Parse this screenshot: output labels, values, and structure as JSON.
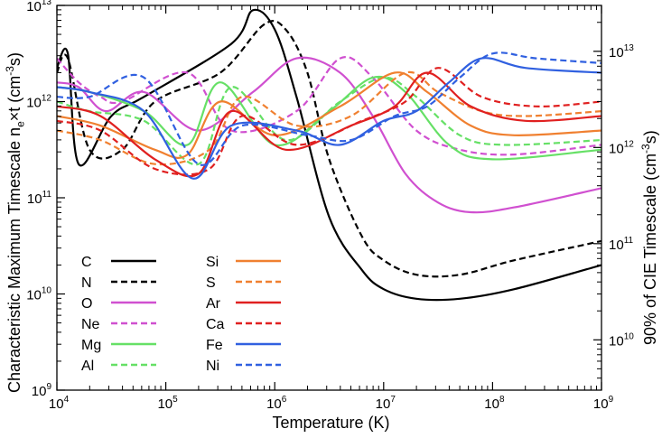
{
  "chart_data": {
    "type": "line",
    "xlabel": "Temperature (K)",
    "ylabel_left": "Characteristic Maximum Timescale nₑ×t (cm⁻³s)",
    "ylabel_left_parts": [
      "Characteristic Maximum Timescale n",
      "e",
      "×t (cm",
      "-3",
      "s)"
    ],
    "ylabel_right": "90% of CIE Timescale (cm⁻³s)",
    "ylabel_right_parts": [
      "90% of CIE Timescale (cm",
      "-3",
      "s)"
    ],
    "xscale": "log",
    "yscale": "log",
    "xlim": [
      10000,
      1000000000
    ],
    "ylim_left": [
      1000000000,
      10000000000000
    ],
    "ylim_right": [
      3000000000,
      30000000000000
    ],
    "x_ticks": [
      {
        "label": "10",
        "exp": "4"
      },
      {
        "label": "10",
        "exp": "5"
      },
      {
        "label": "10",
        "exp": "6"
      },
      {
        "label": "10",
        "exp": "7"
      },
      {
        "label": "10",
        "exp": "8"
      },
      {
        "label": "10",
        "exp": "9"
      }
    ],
    "y_ticks_left": [
      {
        "label": "10",
        "exp": "9"
      },
      {
        "label": "10",
        "exp": "10"
      },
      {
        "label": "10",
        "exp": "11"
      },
      {
        "label": "10",
        "exp": "12"
      },
      {
        "label": "10",
        "exp": "13"
      }
    ],
    "y_ticks_right": [
      {
        "label": "10",
        "exp": "10"
      },
      {
        "label": "10",
        "exp": "11"
      },
      {
        "label": "10",
        "exp": "12"
      },
      {
        "label": "10",
        "exp": "13"
      }
    ],
    "legend_placement": "bottom-left",
    "series": [
      {
        "name": "C",
        "color": "#000000",
        "dash": false,
        "points": [
          [
            4.0,
            12.35
          ],
          [
            4.1,
            12.5
          ],
          [
            4.2,
            11.35
          ],
          [
            4.5,
            11.85
          ],
          [
            4.8,
            12.05
          ],
          [
            5.6,
            12.6
          ],
          [
            5.8,
            12.95
          ],
          [
            6.0,
            12.75
          ],
          [
            6.2,
            12.05
          ],
          [
            6.5,
            10.8
          ],
          [
            6.8,
            10.25
          ],
          [
            7.0,
            10.05
          ],
          [
            7.3,
            9.95
          ],
          [
            7.7,
            9.95
          ],
          [
            8.2,
            10.05
          ],
          [
            9.0,
            10.3
          ]
        ]
      },
      {
        "name": "N",
        "color": "#000000",
        "dash": true,
        "points": [
          [
            4.0,
            12.3
          ],
          [
            4.1,
            12.45
          ],
          [
            4.3,
            11.5
          ],
          [
            4.6,
            11.5
          ],
          [
            4.9,
            12.0
          ],
          [
            5.5,
            12.3
          ],
          [
            5.9,
            12.8
          ],
          [
            6.1,
            12.75
          ],
          [
            6.3,
            12.3
          ],
          [
            6.5,
            11.4
          ],
          [
            6.8,
            10.6
          ],
          [
            7.0,
            10.35
          ],
          [
            7.3,
            10.2
          ],
          [
            7.7,
            10.2
          ],
          [
            8.2,
            10.35
          ],
          [
            9.0,
            10.55
          ]
        ]
      },
      {
        "name": "O",
        "color": "#d050d0",
        "dash": false,
        "points": [
          [
            4.0,
            12.2
          ],
          [
            4.2,
            12.15
          ],
          [
            4.45,
            11.9
          ],
          [
            4.8,
            12.1
          ],
          [
            5.3,
            11.7
          ],
          [
            5.8,
            12.1
          ],
          [
            6.2,
            12.45
          ],
          [
            6.6,
            12.3
          ],
          [
            6.9,
            11.85
          ],
          [
            7.2,
            11.25
          ],
          [
            7.5,
            10.95
          ],
          [
            7.8,
            10.85
          ],
          [
            8.2,
            10.9
          ],
          [
            9.0,
            11.1
          ]
        ]
      },
      {
        "name": "Ne",
        "color": "#d050d0",
        "dash": true,
        "points": [
          [
            4.0,
            12.45
          ],
          [
            4.2,
            12.2
          ],
          [
            4.4,
            12.05
          ],
          [
            4.6,
            12.0
          ],
          [
            5.2,
            12.3
          ],
          [
            5.6,
            11.7
          ],
          [
            6.2,
            11.9
          ],
          [
            6.6,
            12.45
          ],
          [
            6.9,
            12.25
          ],
          [
            7.3,
            11.7
          ],
          [
            7.7,
            11.5
          ],
          [
            8.2,
            11.45
          ],
          [
            9.0,
            11.55
          ]
        ]
      },
      {
        "name": "Mg",
        "color": "#66e066",
        "dash": false,
        "points": [
          [
            4.0,
            12.15
          ],
          [
            4.3,
            12.1
          ],
          [
            4.8,
            11.9
          ],
          [
            5.2,
            11.55
          ],
          [
            5.5,
            12.2
          ],
          [
            6.0,
            11.55
          ],
          [
            6.5,
            11.9
          ],
          [
            6.9,
            12.25
          ],
          [
            7.2,
            12.1
          ],
          [
            7.6,
            11.55
          ],
          [
            8.0,
            11.4
          ],
          [
            9.0,
            11.5
          ]
        ]
      },
      {
        "name": "Al",
        "color": "#66e066",
        "dash": true,
        "points": [
          [
            4.0,
            12.0
          ],
          [
            4.3,
            11.9
          ],
          [
            4.8,
            11.8
          ],
          [
            5.3,
            11.35
          ],
          [
            5.6,
            12.15
          ],
          [
            6.1,
            11.6
          ],
          [
            6.6,
            12.0
          ],
          [
            7.0,
            12.25
          ],
          [
            7.3,
            12.05
          ],
          [
            7.7,
            11.65
          ],
          [
            8.1,
            11.55
          ],
          [
            9.0,
            11.6
          ]
        ]
      },
      {
        "name": "Si",
        "color": "#f08030",
        "dash": false,
        "points": [
          [
            4.0,
            11.85
          ],
          [
            4.4,
            11.75
          ],
          [
            4.9,
            11.5
          ],
          [
            5.2,
            11.45
          ],
          [
            5.5,
            12.0
          ],
          [
            6.0,
            11.65
          ],
          [
            6.6,
            11.95
          ],
          [
            7.1,
            12.3
          ],
          [
            7.4,
            12.1
          ],
          [
            7.8,
            11.75
          ],
          [
            8.2,
            11.65
          ],
          [
            9.0,
            11.7
          ]
        ]
      },
      {
        "name": "S",
        "color": "#f08030",
        "dash": true,
        "points": [
          [
            4.0,
            11.7
          ],
          [
            4.4,
            11.6
          ],
          [
            4.9,
            11.35
          ],
          [
            5.4,
            11.5
          ],
          [
            5.7,
            12.05
          ],
          [
            6.2,
            11.75
          ],
          [
            6.7,
            11.85
          ],
          [
            7.2,
            12.3
          ],
          [
            7.5,
            12.1
          ],
          [
            7.9,
            11.9
          ],
          [
            8.3,
            11.85
          ],
          [
            9.0,
            11.9
          ]
        ]
      },
      {
        "name": "Ar",
        "color": "#e02020",
        "dash": false,
        "points": [
          [
            4.0,
            11.95
          ],
          [
            4.4,
            11.85
          ],
          [
            4.9,
            11.4
          ],
          [
            5.3,
            11.25
          ],
          [
            5.6,
            11.9
          ],
          [
            6.1,
            11.5
          ],
          [
            6.7,
            11.75
          ],
          [
            7.1,
            11.95
          ],
          [
            7.4,
            12.3
          ],
          [
            7.8,
            11.95
          ],
          [
            8.3,
            11.8
          ],
          [
            9.0,
            11.85
          ]
        ]
      },
      {
        "name": "Ca",
        "color": "#e02020",
        "dash": true,
        "points": [
          [
            4.0,
            11.8
          ],
          [
            4.4,
            11.7
          ],
          [
            4.9,
            11.3
          ],
          [
            5.4,
            11.3
          ],
          [
            5.7,
            11.85
          ],
          [
            6.2,
            11.55
          ],
          [
            6.8,
            11.8
          ],
          [
            7.2,
            12.0
          ],
          [
            7.5,
            12.35
          ],
          [
            7.9,
            12.05
          ],
          [
            8.4,
            11.95
          ],
          [
            9.0,
            12.0
          ]
        ]
      },
      {
        "name": "Fe",
        "color": "#3060e0",
        "dash": false,
        "points": [
          [
            4.0,
            12.15
          ],
          [
            4.3,
            12.1
          ],
          [
            4.8,
            11.9
          ],
          [
            5.25,
            11.2
          ],
          [
            5.6,
            11.75
          ],
          [
            6.2,
            11.7
          ],
          [
            6.6,
            11.55
          ],
          [
            7.0,
            11.8
          ],
          [
            7.3,
            11.9
          ],
          [
            7.6,
            12.2
          ],
          [
            7.9,
            12.45
          ],
          [
            8.3,
            12.35
          ],
          [
            9.0,
            12.3
          ]
        ]
      },
      {
        "name": "Ni",
        "color": "#3060e0",
        "dash": true,
        "points": [
          [
            4.0,
            12.05
          ],
          [
            4.3,
            12.05
          ],
          [
            4.8,
            12.25
          ],
          [
            5.3,
            11.35
          ],
          [
            5.7,
            11.75
          ],
          [
            6.3,
            11.65
          ],
          [
            6.7,
            11.6
          ],
          [
            7.1,
            11.85
          ],
          [
            7.4,
            11.95
          ],
          [
            7.7,
            12.25
          ],
          [
            8.0,
            12.5
          ],
          [
            8.4,
            12.45
          ],
          [
            9.0,
            12.4
          ]
        ]
      }
    ]
  }
}
